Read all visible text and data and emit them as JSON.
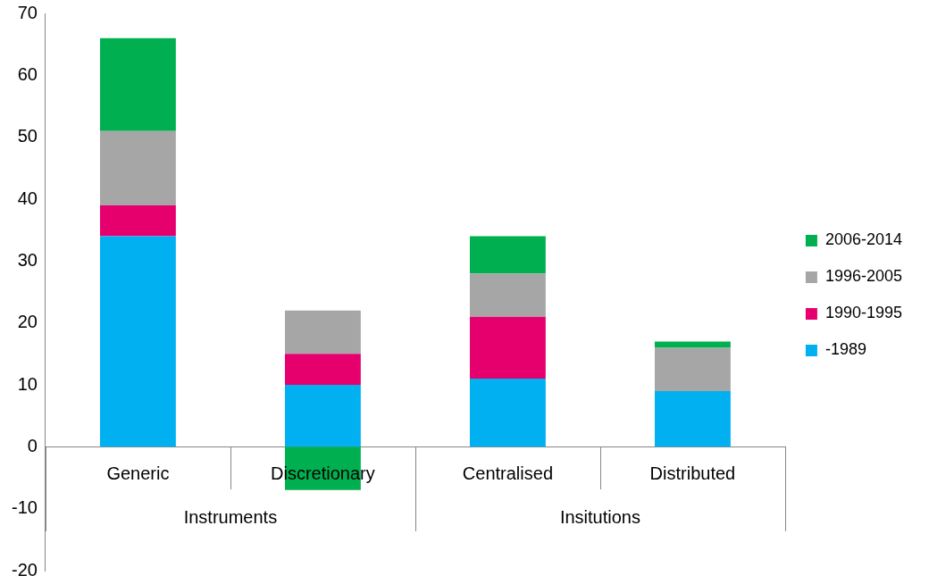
{
  "chart_data": {
    "type": "bar",
    "stacked": true,
    "categories": [
      "Generic",
      "Discretionary",
      "Centralised",
      "Distributed"
    ],
    "series": [
      {
        "name": "-1989",
        "color": "#00b0f0",
        "values": [
          34,
          10,
          11,
          9
        ]
      },
      {
        "name": "1990-1995",
        "color": "#e6006e",
        "values": [
          5,
          5,
          10,
          0
        ]
      },
      {
        "name": "1996-2005",
        "color": "#a6a6a6",
        "values": [
          12,
          7,
          7,
          7
        ]
      },
      {
        "name": "2006-2014",
        "color": "#00b050",
        "values": [
          15,
          -7,
          6,
          1
        ]
      }
    ],
    "ylim": [
      -20,
      70
    ],
    "yticks": [
      -20,
      -10,
      0,
      10,
      20,
      30,
      40,
      50,
      60,
      70
    ],
    "grid": false,
    "legend": "right",
    "annotations": [
      "Instruments",
      "Insitutions"
    ]
  }
}
